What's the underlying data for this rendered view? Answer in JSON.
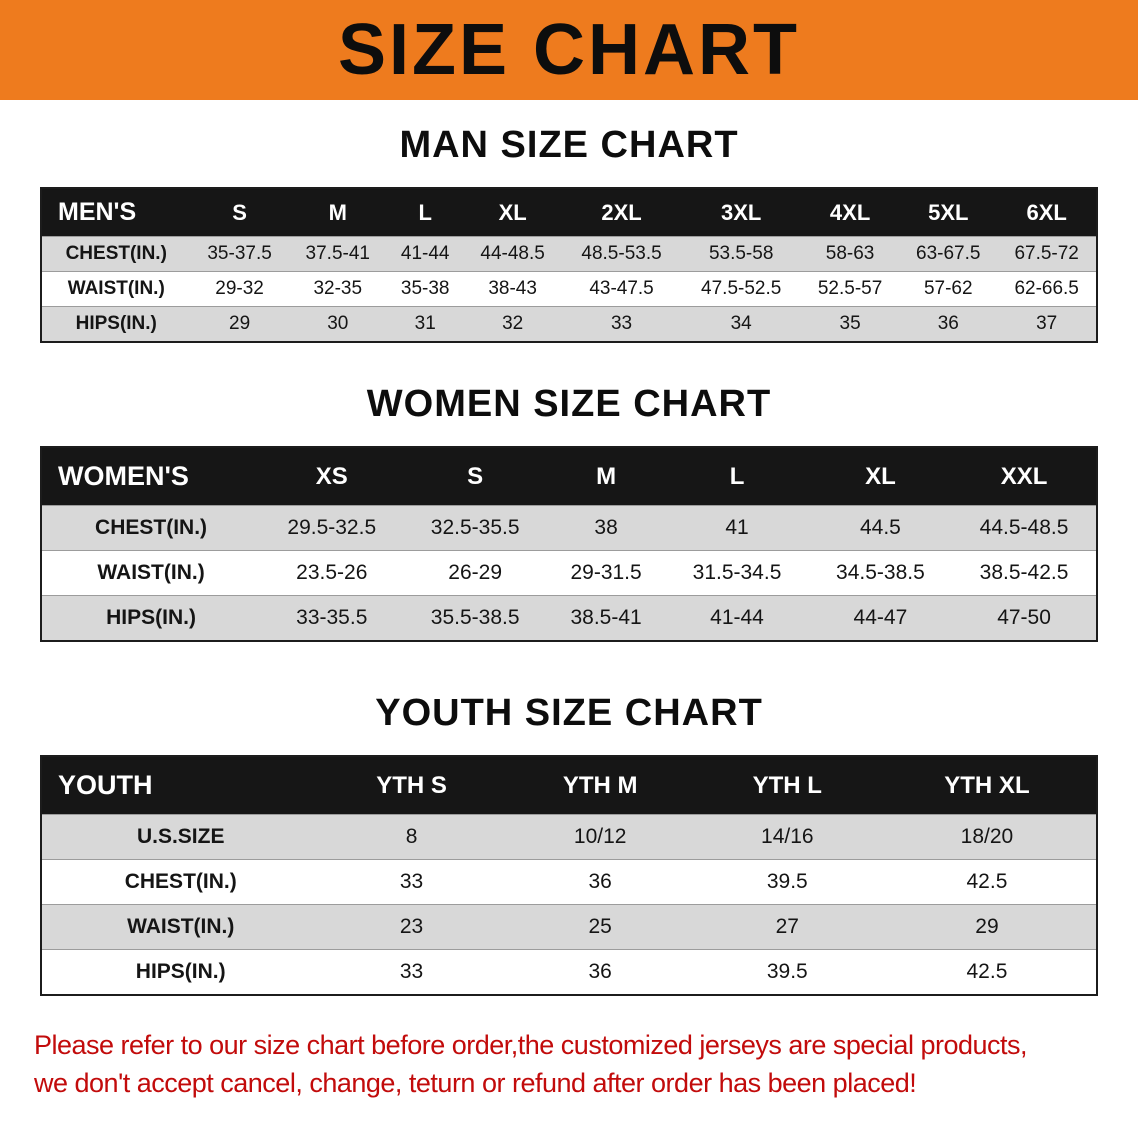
{
  "banner": {
    "title": "SIZE CHART"
  },
  "sections": [
    {
      "heading": "MAN SIZE CHART",
      "table": {
        "header": [
          "MEN'S",
          "S",
          "M",
          "L",
          "XL",
          "2XL",
          "3XL",
          "4XL",
          "5XL",
          "6XL"
        ],
        "rows": [
          [
            "CHEST(IN.)",
            "35-37.5",
            "37.5-41",
            "41-44",
            "44-48.5",
            "48.5-53.5",
            "53.5-58",
            "58-63",
            "63-67.5",
            "67.5-72"
          ],
          [
            "WAIST(IN.)",
            "29-32",
            "32-35",
            "35-38",
            "38-43",
            "43-47.5",
            "47.5-52.5",
            "52.5-57",
            "57-62",
            "62-66.5"
          ],
          [
            "HIPS(IN.)",
            "29",
            "30",
            "31",
            "32",
            "33",
            "34",
            "35",
            "36",
            "37"
          ]
        ]
      }
    },
    {
      "heading": "WOMEN SIZE CHART",
      "table": {
        "header": [
          "WOMEN'S",
          "XS",
          "S",
          "M",
          "L",
          "XL",
          "XXL"
        ],
        "rows": [
          [
            "CHEST(IN.)",
            "29.5-32.5",
            "32.5-35.5",
            "38",
            "41",
            "44.5",
            "44.5-48.5"
          ],
          [
            "WAIST(IN.)",
            "23.5-26",
            "26-29",
            "29-31.5",
            "31.5-34.5",
            "34.5-38.5",
            "38.5-42.5"
          ],
          [
            "HIPS(IN.)",
            "33-35.5",
            "35.5-38.5",
            "38.5-41",
            "41-44",
            "44-47",
            "47-50"
          ]
        ]
      }
    },
    {
      "heading": "YOUTH SIZE CHART",
      "table": {
        "header": [
          "YOUTH",
          "YTH S",
          "YTH M",
          "YTH L",
          "YTH XL"
        ],
        "rows": [
          [
            "U.S.SIZE",
            "8",
            "10/12",
            "14/16",
            "18/20"
          ],
          [
            "CHEST(IN.)",
            "33",
            "36",
            "39.5",
            "42.5"
          ],
          [
            "WAIST(IN.)",
            "23",
            "25",
            "27",
            "29"
          ],
          [
            "HIPS(IN.)",
            "33",
            "36",
            "39.5",
            "42.5"
          ]
        ]
      }
    }
  ],
  "footnote": {
    "line1": "Please refer to our size chart before order,the customized jerseys are special products,",
    "line2": "we don't accept cancel, change, teturn or refund after order has been placed!"
  },
  "colors": {
    "banner_bg": "#ee7b1e",
    "header_bg": "#161616",
    "stripe": "#d8d8d8",
    "footnote_red": "#c20b0b"
  }
}
